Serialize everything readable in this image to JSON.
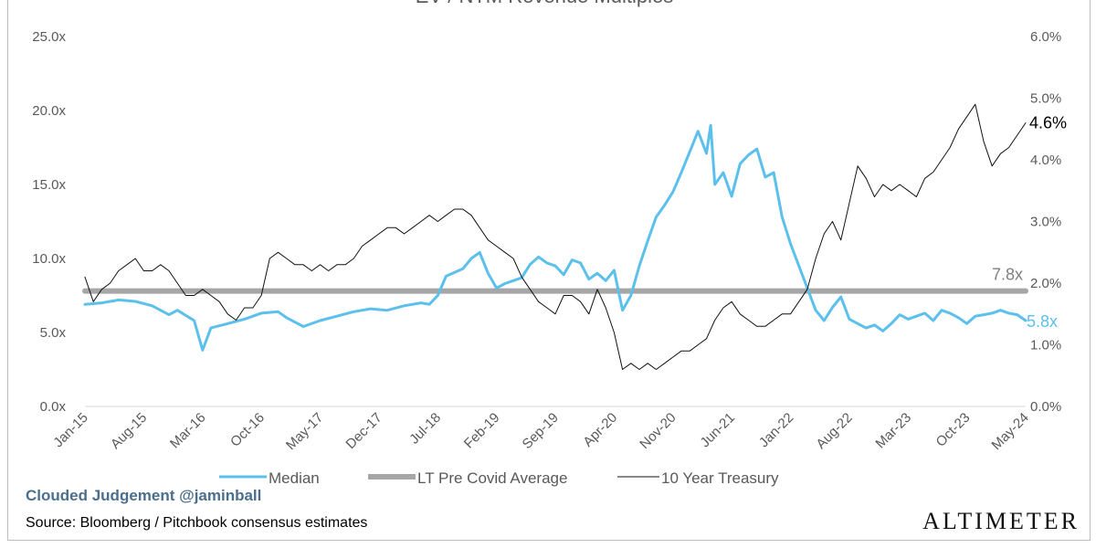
{
  "chart_data": {
    "type": "line",
    "title": "EV / NTM Revenue Multiples",
    "x_tick_labels": [
      "Jan-15",
      "Aug-15",
      "Mar-16",
      "Oct-16",
      "May-17",
      "Dec-17",
      "Jul-18",
      "Feb-19",
      "Sep-19",
      "Apr-20",
      "Nov-20",
      "Jun-21",
      "Jan-22",
      "Aug-22",
      "Mar-23",
      "Oct-23",
      "May-24"
    ],
    "x_range_months": [
      0,
      112
    ],
    "y_left": {
      "ticks": [
        "0.0x",
        "5.0x",
        "10.0x",
        "15.0x",
        "20.0x",
        "25.0x"
      ],
      "min": 0,
      "max": 25
    },
    "y_right": {
      "ticks": [
        "0.0%",
        "1.0%",
        "2.0%",
        "3.0%",
        "4.0%",
        "5.0%",
        "6.0%"
      ],
      "min": 0,
      "max": 6
    },
    "series": [
      {
        "name": "Median",
        "axis": "left",
        "color": "#5bc0eb",
        "end_label": "5.8x",
        "points": [
          [
            0,
            6.9
          ],
          [
            2,
            7.0
          ],
          [
            4,
            7.2
          ],
          [
            6,
            7.1
          ],
          [
            8,
            6.8
          ],
          [
            10,
            6.2
          ],
          [
            11,
            6.5
          ],
          [
            13,
            5.8
          ],
          [
            14,
            3.8
          ],
          [
            15,
            5.3
          ],
          [
            17,
            5.6
          ],
          [
            19,
            5.9
          ],
          [
            21,
            6.3
          ],
          [
            23,
            6.4
          ],
          [
            24,
            6.0
          ],
          [
            26,
            5.4
          ],
          [
            28,
            5.8
          ],
          [
            30,
            6.1
          ],
          [
            32,
            6.4
          ],
          [
            34,
            6.6
          ],
          [
            36,
            6.5
          ],
          [
            38,
            6.8
          ],
          [
            40,
            7.0
          ],
          [
            41,
            6.9
          ],
          [
            42,
            7.5
          ],
          [
            43,
            8.8
          ],
          [
            45,
            9.3
          ],
          [
            46,
            10.0
          ],
          [
            47,
            10.4
          ],
          [
            48,
            9.0
          ],
          [
            49,
            8.0
          ],
          [
            50,
            8.3
          ],
          [
            51,
            8.5
          ],
          [
            52,
            8.7
          ],
          [
            53,
            9.6
          ],
          [
            54,
            10.1
          ],
          [
            55,
            9.7
          ],
          [
            56,
            9.5
          ],
          [
            57,
            8.9
          ],
          [
            58,
            9.9
          ],
          [
            59,
            9.7
          ],
          [
            60,
            8.6
          ],
          [
            61,
            9.0
          ],
          [
            62,
            8.5
          ],
          [
            63,
            9.2
          ],
          [
            64,
            6.5
          ],
          [
            65,
            7.5
          ],
          [
            66,
            9.5
          ],
          [
            67,
            11.2
          ],
          [
            68,
            12.8
          ],
          [
            69,
            13.6
          ],
          [
            70,
            14.5
          ],
          [
            71,
            15.8
          ],
          [
            72,
            17.2
          ],
          [
            73,
            18.6
          ],
          [
            74,
            17.1
          ],
          [
            74.5,
            19.0
          ],
          [
            75,
            15.0
          ],
          [
            76,
            15.8
          ],
          [
            77,
            14.2
          ],
          [
            78,
            16.4
          ],
          [
            79,
            17.0
          ],
          [
            80,
            17.4
          ],
          [
            81,
            15.5
          ],
          [
            82,
            15.8
          ],
          [
            83,
            12.8
          ],
          [
            84,
            11.0
          ],
          [
            85,
            9.5
          ],
          [
            86,
            8.0
          ],
          [
            87,
            6.5
          ],
          [
            88,
            5.8
          ],
          [
            89,
            6.7
          ],
          [
            90,
            7.4
          ],
          [
            91,
            5.9
          ],
          [
            92,
            5.6
          ],
          [
            93,
            5.3
          ],
          [
            94,
            5.5
          ],
          [
            95,
            5.1
          ],
          [
            96,
            5.6
          ],
          [
            97,
            6.2
          ],
          [
            98,
            5.9
          ],
          [
            99,
            6.1
          ],
          [
            100,
            6.3
          ],
          [
            101,
            5.8
          ],
          [
            102,
            6.5
          ],
          [
            103,
            6.3
          ],
          [
            104,
            6.0
          ],
          [
            105,
            5.6
          ],
          [
            106,
            6.1
          ],
          [
            107,
            6.2
          ],
          [
            108,
            6.3
          ],
          [
            109,
            6.5
          ],
          [
            110,
            6.3
          ],
          [
            111,
            6.2
          ],
          [
            112,
            5.8
          ]
        ]
      },
      {
        "name": "LT Pre Covid Average",
        "axis": "left",
        "color": "#a6a6a6",
        "end_label": "7.8x",
        "points": [
          [
            0,
            7.8
          ],
          [
            112,
            7.8
          ]
        ]
      },
      {
        "name": "10 Year Treasury",
        "axis": "right",
        "color": "#111111",
        "end_label": "4.6%",
        "points": [
          [
            0,
            2.1
          ],
          [
            1,
            1.7
          ],
          [
            2,
            1.9
          ],
          [
            3,
            2.0
          ],
          [
            4,
            2.2
          ],
          [
            5,
            2.3
          ],
          [
            6,
            2.4
          ],
          [
            7,
            2.2
          ],
          [
            8,
            2.2
          ],
          [
            9,
            2.3
          ],
          [
            10,
            2.2
          ],
          [
            11,
            2.0
          ],
          [
            12,
            1.8
          ],
          [
            13,
            1.8
          ],
          [
            14,
            1.9
          ],
          [
            15,
            1.8
          ],
          [
            16,
            1.7
          ],
          [
            17,
            1.5
          ],
          [
            18,
            1.4
          ],
          [
            19,
            1.6
          ],
          [
            20,
            1.6
          ],
          [
            21,
            1.8
          ],
          [
            22,
            2.4
          ],
          [
            23,
            2.5
          ],
          [
            24,
            2.4
          ],
          [
            25,
            2.3
          ],
          [
            26,
            2.3
          ],
          [
            27,
            2.2
          ],
          [
            28,
            2.3
          ],
          [
            29,
            2.2
          ],
          [
            30,
            2.3
          ],
          [
            31,
            2.3
          ],
          [
            32,
            2.4
          ],
          [
            33,
            2.6
          ],
          [
            34,
            2.7
          ],
          [
            35,
            2.8
          ],
          [
            36,
            2.9
          ],
          [
            37,
            2.9
          ],
          [
            38,
            2.8
          ],
          [
            39,
            2.9
          ],
          [
            40,
            3.0
          ],
          [
            41,
            3.1
          ],
          [
            42,
            3.0
          ],
          [
            43,
            3.1
          ],
          [
            44,
            3.2
          ],
          [
            45,
            3.2
          ],
          [
            46,
            3.1
          ],
          [
            47,
            2.9
          ],
          [
            48,
            2.7
          ],
          [
            49,
            2.6
          ],
          [
            50,
            2.5
          ],
          [
            51,
            2.4
          ],
          [
            52,
            2.1
          ],
          [
            53,
            1.9
          ],
          [
            54,
            1.7
          ],
          [
            55,
            1.6
          ],
          [
            56,
            1.5
          ],
          [
            57,
            1.8
          ],
          [
            58,
            1.8
          ],
          [
            59,
            1.7
          ],
          [
            60,
            1.5
          ],
          [
            61,
            1.9
          ],
          [
            62,
            1.6
          ],
          [
            63,
            1.2
          ],
          [
            64,
            0.6
          ],
          [
            65,
            0.7
          ],
          [
            66,
            0.6
          ],
          [
            67,
            0.7
          ],
          [
            68,
            0.6
          ],
          [
            69,
            0.7
          ],
          [
            70,
            0.8
          ],
          [
            71,
            0.9
          ],
          [
            72,
            0.9
          ],
          [
            73,
            1.0
          ],
          [
            74,
            1.1
          ],
          [
            75,
            1.4
          ],
          [
            76,
            1.6
          ],
          [
            77,
            1.7
          ],
          [
            78,
            1.5
          ],
          [
            79,
            1.4
          ],
          [
            80,
            1.3
          ],
          [
            81,
            1.3
          ],
          [
            82,
            1.4
          ],
          [
            83,
            1.5
          ],
          [
            84,
            1.5
          ],
          [
            85,
            1.7
          ],
          [
            86,
            1.9
          ],
          [
            87,
            2.4
          ],
          [
            88,
            2.8
          ],
          [
            89,
            3.0
          ],
          [
            90,
            2.7
          ],
          [
            91,
            3.3
          ],
          [
            92,
            3.9
          ],
          [
            93,
            3.7
          ],
          [
            94,
            3.4
          ],
          [
            95,
            3.6
          ],
          [
            96,
            3.5
          ],
          [
            97,
            3.6
          ],
          [
            98,
            3.5
          ],
          [
            99,
            3.4
          ],
          [
            100,
            3.7
          ],
          [
            101,
            3.8
          ],
          [
            102,
            4.0
          ],
          [
            103,
            4.2
          ],
          [
            104,
            4.5
          ],
          [
            105,
            4.7
          ],
          [
            106,
            4.9
          ],
          [
            107,
            4.3
          ],
          [
            108,
            3.9
          ],
          [
            109,
            4.1
          ],
          [
            110,
            4.2
          ],
          [
            111,
            4.4
          ],
          [
            112,
            4.6
          ]
        ]
      }
    ]
  },
  "branding": {
    "handle": "Clouded Judgement @jaminball",
    "source": "Source: Bloomberg / Pitchbook consensus estimates",
    "logo": "ALTIMETER"
  }
}
